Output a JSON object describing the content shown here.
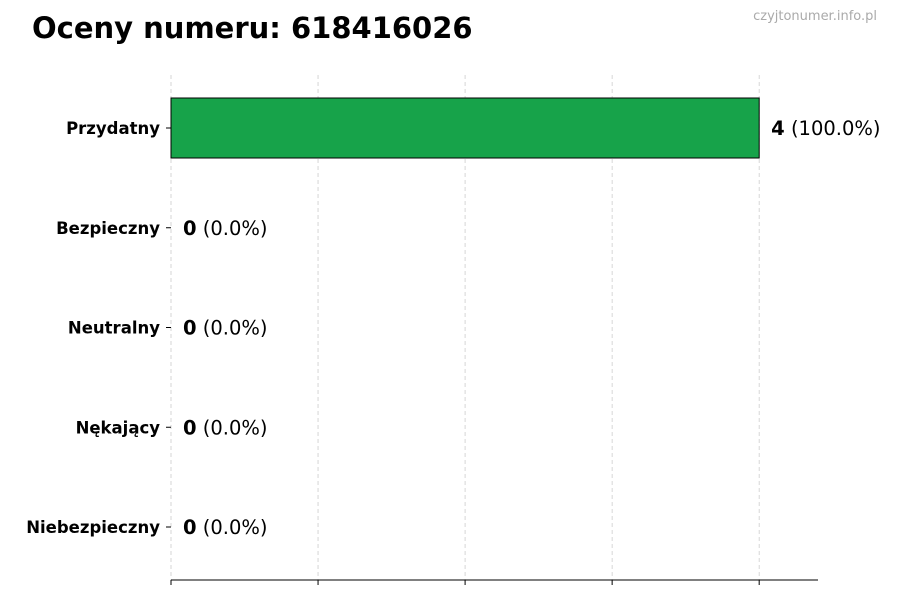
{
  "watermark": "czyjtonumer.info.pl",
  "chart_data": {
    "type": "bar",
    "orientation": "horizontal",
    "title": "Oceny numeru: 618416026",
    "categories": [
      "Przydatny",
      "Bezpieczny",
      "Neutralny",
      "Nękający",
      "Niebezpieczny"
    ],
    "values": [
      4,
      0,
      0,
      0,
      0
    ],
    "value_labels": [
      "4",
      "0",
      "0",
      "0",
      "0"
    ],
    "percent_labels": [
      "(100.0%)",
      "(0.0%)",
      "(0.0%)",
      "(0.0%)",
      "(0.0%)"
    ],
    "bar_color": "#17a34a",
    "xlim": [
      0,
      4.4
    ],
    "xticks": [
      0,
      1,
      2,
      3,
      4
    ],
    "grid": "x-dashed",
    "xlabel": "",
    "ylabel": ""
  }
}
